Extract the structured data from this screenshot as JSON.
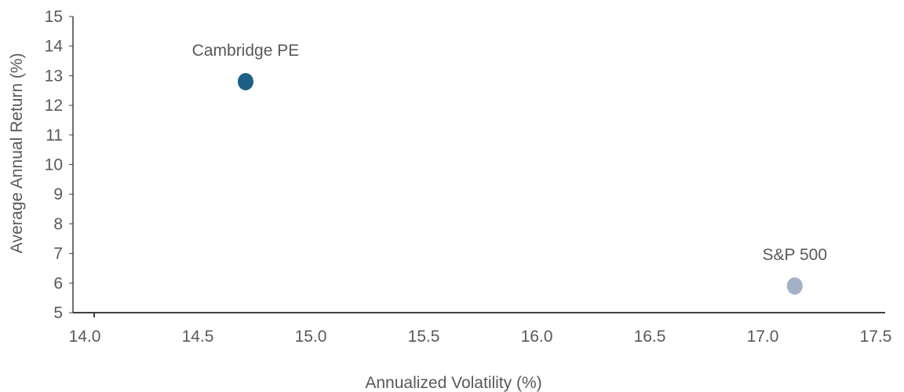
{
  "chart_data": {
    "type": "scatter",
    "title": "",
    "xlabel": "Annualized Volatility (%)",
    "ylabel": "Average Annual Return (%)",
    "xlim": [
      14.0,
      17.5
    ],
    "ylim": [
      5,
      15
    ],
    "x_ticks": [
      "14.0",
      "14.5",
      "15.0",
      "15.5",
      "16.0",
      "16.5",
      "17.0",
      "17.5"
    ],
    "y_ticks": [
      "5",
      "6",
      "7",
      "8",
      "9",
      "10",
      "11",
      "12",
      "13",
      "14",
      "15"
    ],
    "grid": false,
    "points": [
      {
        "label": "Cambridge PE",
        "x": 14.67,
        "y": 12.8,
        "color": "#1f5f86"
      },
      {
        "label": "S&P 500",
        "x": 17.1,
        "y": 5.9,
        "color": "#a3b1c8"
      }
    ],
    "axis_color": "#404040"
  }
}
